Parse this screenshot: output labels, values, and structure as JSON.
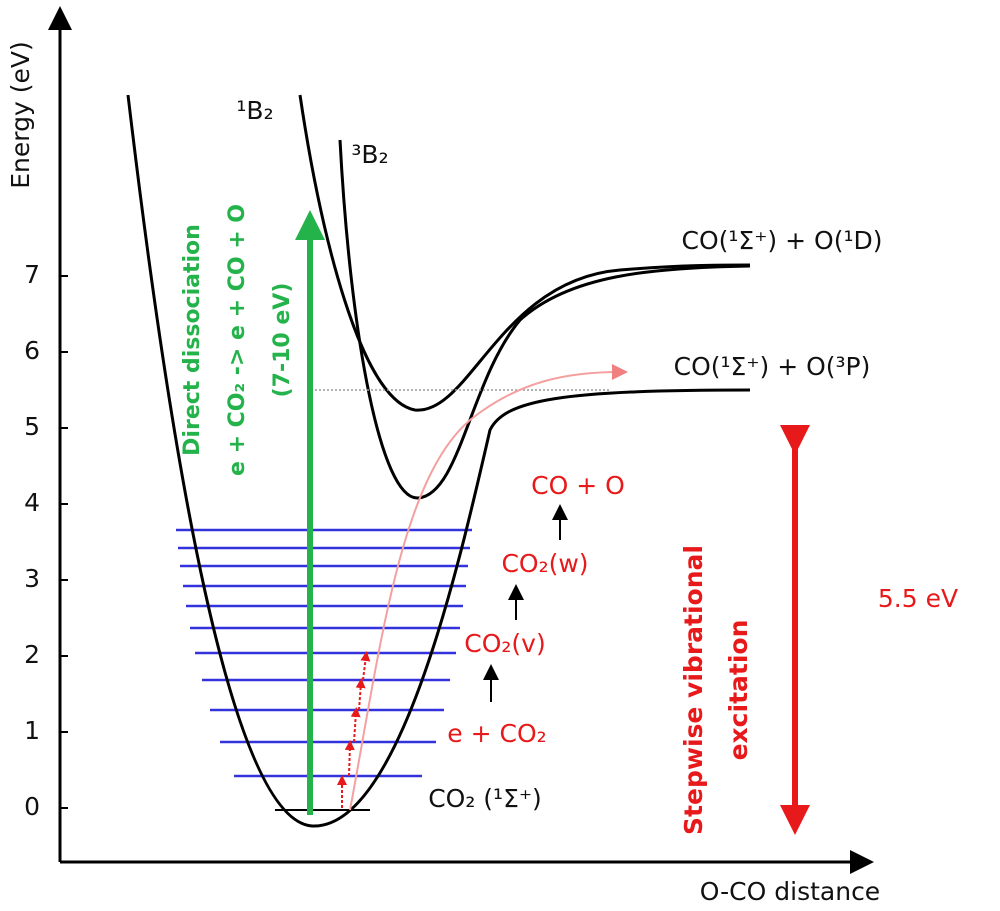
{
  "axes": {
    "y_label": "Energy (eV)",
    "x_label": "O-CO distance",
    "yticks": [
      0,
      1,
      2,
      3,
      4,
      5,
      6,
      7
    ]
  },
  "states": {
    "singlet": "¹B₂",
    "triplet": "³B₂",
    "ground": "CO₂ (¹Σ⁺)"
  },
  "asymptotes": {
    "upper": "CO(¹Σ⁺) + O(¹D)",
    "lower": "CO(¹Σ⁺) + O(³P)"
  },
  "direct": {
    "line1": "Direct dissociation",
    "line2": "e + CO₂ -> e + CO + O",
    "line3": "(7-10 eV)"
  },
  "stepwise": {
    "step1": "e + CO₂",
    "step2": "CO₂(v)",
    "step3": "CO₂(w)",
    "step4": "CO + O",
    "line1": "Stepwise vibrational",
    "line2": "excitation",
    "energy": "5.5 eV"
  }
}
